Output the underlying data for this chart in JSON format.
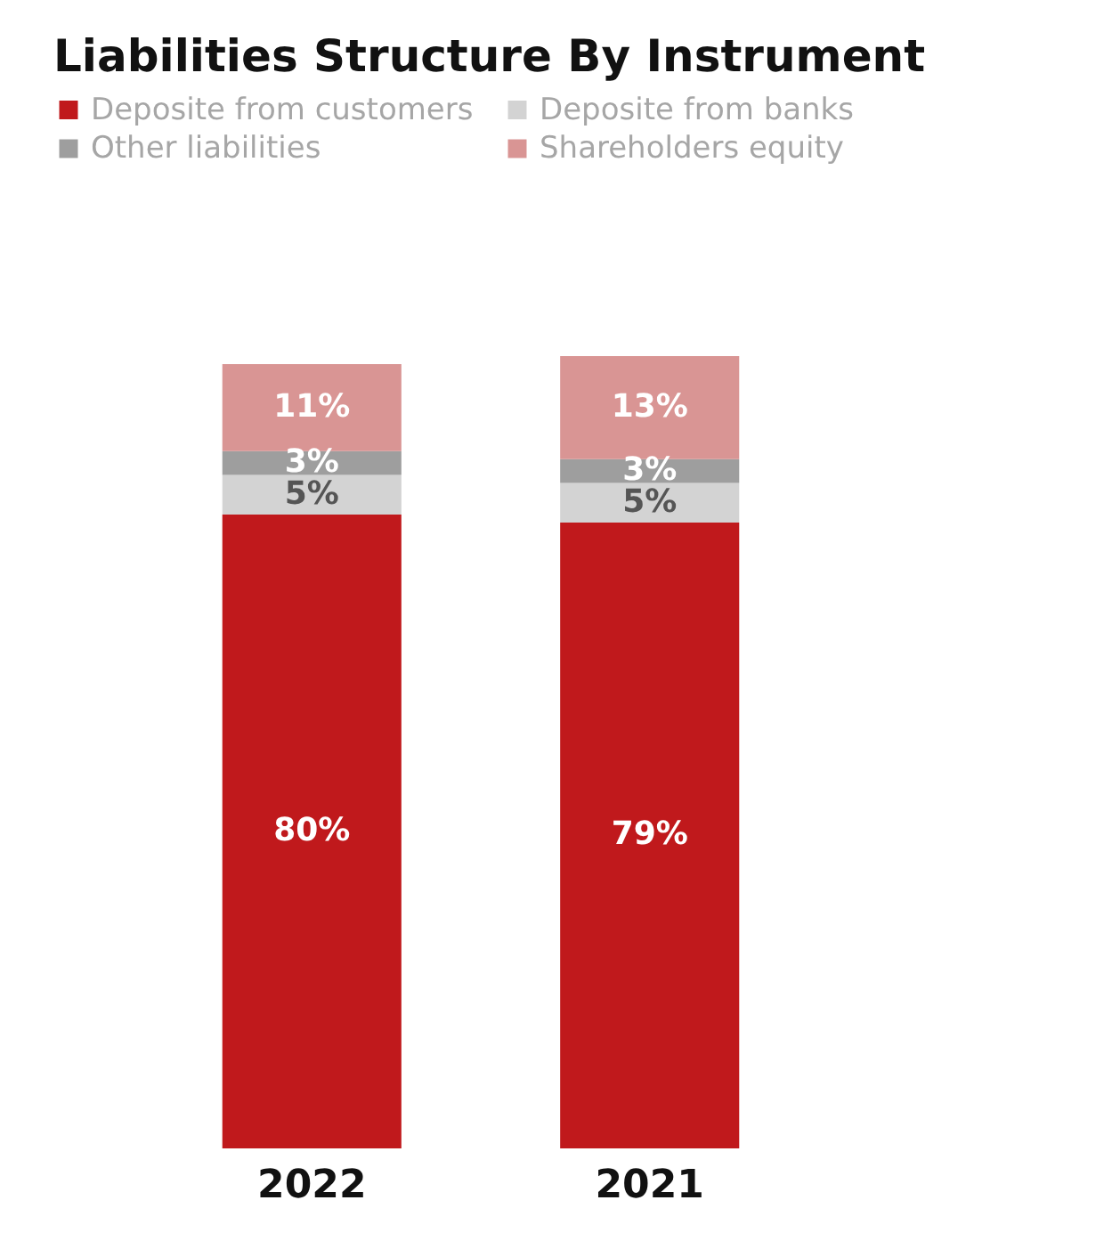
{
  "chart_data": {
    "type": "bar",
    "title": "Liabilities Structure By Instrument",
    "categories": [
      "2022",
      "2021"
    ],
    "stacked": true,
    "data_labels": false,
    "legend": "top left",
    "series": [
      {
        "name": "Deposite from customers",
        "color": "#c0191c",
        "values": [
          80,
          79
        ],
        "value_labels": [
          "80%",
          "79%"
        ]
      },
      {
        "name": "Deposite from banks",
        "color": "#d3d3d3",
        "values": [
          5,
          5
        ],
        "value_labels": [
          "5%",
          "5%"
        ]
      },
      {
        "name": "Other liabilities",
        "color": "#9e9e9e",
        "values": [
          3,
          3
        ],
        "value_labels": [
          "3%",
          "3%"
        ]
      },
      {
        "name": "Shareholders equity",
        "color": "#d99594",
        "values": [
          11,
          13
        ],
        "value_labels": [
          "11%",
          "13%"
        ]
      }
    ]
  }
}
